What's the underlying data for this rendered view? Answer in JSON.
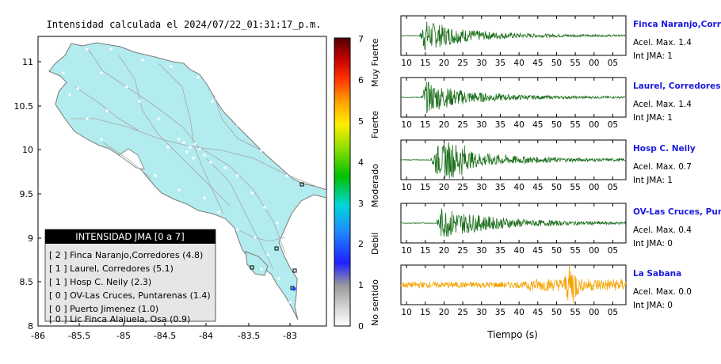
{
  "map": {
    "title": "Intensidad calculada el 2024/07/22_01:31:17_p.m.",
    "x_ticks": [
      "-86",
      "-85.5",
      "-85",
      "-84.5",
      "-84",
      "-83.5",
      "-83"
    ],
    "y_ticks": [
      "11",
      "10.5",
      "10",
      "9.5",
      "9",
      "8.5",
      "8"
    ],
    "land_color": "#b3ecee",
    "legend": {
      "title": "INTENSIDAD JMA [0 a 7]",
      "items": [
        "[ 2 ]  Finca Naranjo,Corredores (4.8)",
        "[ 1 ]  Laurel, Corredores (5.1)",
        "[ 1 ]  Hosp C. Neily (2.3)",
        "[ 0 ]  OV-Las Cruces, Puntarenas (1.4)",
        "[ 0 ]  Puerto Jimenez (1.0)",
        "[ 0 ]  Lic Finca Alajuela, Osa (0.9)"
      ]
    }
  },
  "colorbar": {
    "ticks": [
      "0",
      "1",
      "2",
      "3",
      "4",
      "5",
      "6",
      "7"
    ],
    "labels": [
      "No sentido",
      "Debil",
      "Moderado",
      "Fuerte",
      "Muy Fuerte"
    ]
  },
  "chart_data": {
    "type": "line",
    "x_label": "Tiempo (s)",
    "x_ticks": [
      "10",
      "15",
      "20",
      "25",
      "30",
      "35",
      "40",
      "45",
      "50",
      "55",
      "00",
      "05"
    ],
    "traces": [
      {
        "station": "Finca Naranjo,Corredor",
        "accel_label": "Acel. Max. 1.4",
        "int_label": "Int JMA: 1",
        "color": "#1a6e1a",
        "onset": 13.5,
        "peak_amp": 1.0
      },
      {
        "station": "Laurel, Corredores",
        "accel_label": "Acel. Max. 1.4",
        "int_label": "Int JMA: 1",
        "color": "#1a6e1a",
        "onset": 14.0,
        "peak_amp": 1.0
      },
      {
        "station": "Hosp C. Neily",
        "accel_label": "Acel. Max. 0.7",
        "int_label": "Int JMA: 1",
        "color": "#1a6e1a",
        "onset": 16.5,
        "peak_amp": 0.95
      },
      {
        "station": "OV-Las Cruces, Puntar",
        "accel_label": "Acel. Max. 0.4",
        "int_label": "Int JMA: 0",
        "color": "#1a6e1a",
        "onset": 18.0,
        "peak_amp": 0.95
      },
      {
        "station": "La Sabana",
        "accel_label": "Acel. Max. 0.0",
        "int_label": "Int JMA: 0",
        "color": "#f5a300",
        "onset": 9.0,
        "peak_amp": 0.45
      }
    ]
  }
}
